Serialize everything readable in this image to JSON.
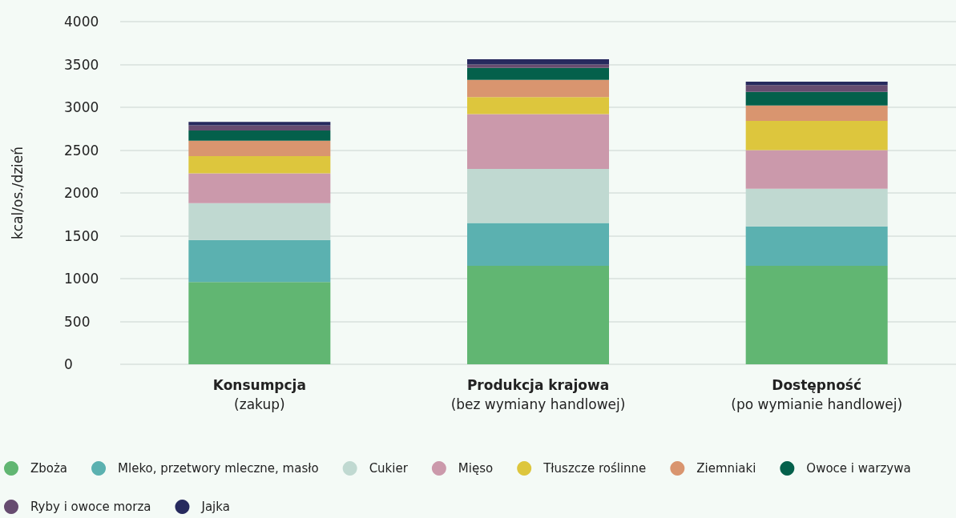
{
  "chart_data": {
    "type": "bar",
    "stacked": true,
    "ylabel": "kcal/os./dzień",
    "categories": [
      "Konsumpcja\n(zakup)",
      "Produkcja krajowa\n(bez wymiany handlowej)",
      "Dostępność\n(po wymianie handlowej)"
    ],
    "series": [
      {
        "name": "Zboża",
        "color": "#61b672",
        "values": [
          960,
          1150,
          1150
        ]
      },
      {
        "name": "Mleko, przetwory mleczne, masło",
        "color": "#5bb1b0",
        "values": [
          490,
          500,
          460
        ]
      },
      {
        "name": "Cukier",
        "color": "#c0d9d1",
        "values": [
          430,
          630,
          440
        ]
      },
      {
        "name": "Mięso",
        "color": "#cb99ab",
        "values": [
          350,
          640,
          450
        ]
      },
      {
        "name": "Tłuszcze roślinne",
        "color": "#ddc63d",
        "values": [
          200,
          200,
          340
        ]
      },
      {
        "name": "Ziemniaki",
        "color": "#d9956f",
        "values": [
          180,
          200,
          180
        ]
      },
      {
        "name": "Owoce i warzywa",
        "color": "#04604b",
        "values": [
          120,
          140,
          160
        ]
      },
      {
        "name": "Ryby i owoce morza",
        "color": "#674c70",
        "values": [
          60,
          40,
          80
        ]
      },
      {
        "name": "Jajka",
        "color": "#272a5e",
        "values": [
          40,
          60,
          40
        ]
      }
    ],
    "ylim": [
      0,
      4000
    ],
    "yticks": [
      0,
      500,
      1000,
      1500,
      2000,
      2500,
      3000,
      3500,
      4000
    ],
    "grid": "y",
    "legend": "bottom"
  }
}
